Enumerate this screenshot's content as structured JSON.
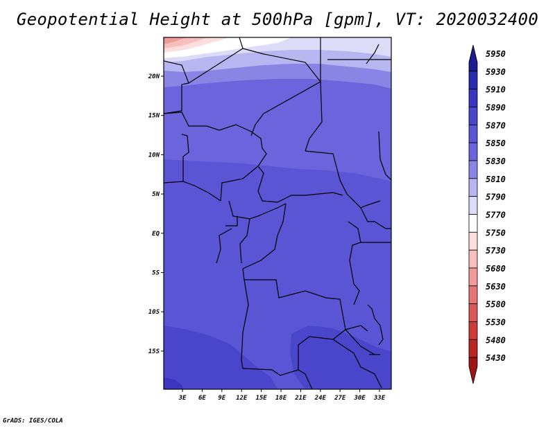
{
  "title": "Geopotential Height at 500hPa [gpm], VT: 2020032400",
  "footer": "GrADS: IGES/COLA",
  "map": {
    "lon_ticks": [
      "3E",
      "6E",
      "9E",
      "12E",
      "15E",
      "18E",
      "21E",
      "24E",
      "27E",
      "30E",
      "33E"
    ],
    "lat_ticks": [
      "20N",
      "15N",
      "10N",
      "5N",
      "EQ",
      "5S",
      "10S",
      "15S"
    ]
  },
  "colorbar": {
    "levels": [
      "5950",
      "5930",
      "5910",
      "5890",
      "5870",
      "5850",
      "5830",
      "5810",
      "5790",
      "5770",
      "5750",
      "5730",
      "5680",
      "5630",
      "5580",
      "5530",
      "5480",
      "5430"
    ],
    "colors": [
      "#1c1c8e",
      "#2a2ab0",
      "#3a36c0",
      "#4a46cc",
      "#5a55d4",
      "#6b64dc",
      "#8a85e4",
      "#b8b6f0",
      "#dcdcf8",
      "#ffffff",
      "#fcdede",
      "#f7bebe",
      "#f09a9a",
      "#e47676",
      "#d85858",
      "#cc3a3a",
      "#b82626",
      "#9c1616"
    ]
  },
  "field_colors": {
    "c5890": "#4a46cc",
    "c5870": "#5a55d4",
    "c5850": "#6b64dc",
    "c5830": "#8a85e4",
    "c5810": "#b8b6f0",
    "c5790": "#dcdcf8",
    "c5770": "#ffffff",
    "c5750": "#fcdede",
    "c5730": "#f7bebe",
    "c5680": "#f09a9a"
  }
}
